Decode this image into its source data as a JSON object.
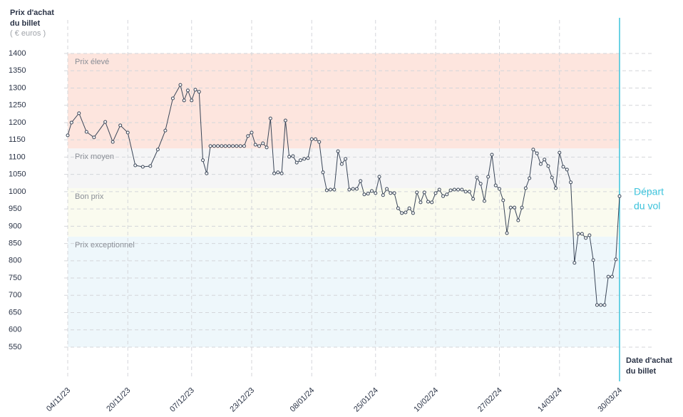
{
  "chart_data": {
    "type": "line",
    "y_label": [
      "Prix d'achat",
      "du billet"
    ],
    "y_unit": "( € euros )",
    "x_label": [
      "Date d'achat",
      "du billet"
    ],
    "ylim": [
      550,
      1400
    ],
    "yticks": [
      550,
      600,
      650,
      700,
      750,
      800,
      850,
      900,
      950,
      1000,
      1050,
      1100,
      1150,
      1200,
      1250,
      1300,
      1350,
      1400
    ],
    "xlim": [
      "04/11/23",
      "30/03/24"
    ],
    "xticks": [
      "04/11/23",
      "20/11/23",
      "07/12/23",
      "23/12/23",
      "08/01/24",
      "25/01/24",
      "10/02/24",
      "27/02/24",
      "14/03/24",
      "30/03/24"
    ],
    "grid": true,
    "zones": [
      {
        "label": "Prix élevé",
        "from": 1125,
        "to": 1400,
        "color": "#fde5de"
      },
      {
        "label": "Prix moyen",
        "from": 1010,
        "to": 1125,
        "color": "#f5f5f6"
      },
      {
        "label": "Bon prix",
        "from": 870,
        "to": 1010,
        "color": "#fafbef"
      },
      {
        "label": "Prix exceptionnel",
        "from": 550,
        "to": 870,
        "color": "#eef7fb"
      }
    ],
    "departure": {
      "label": [
        "Départ",
        "du vol"
      ],
      "date": "30/03/24",
      "color": "#3cc3dc"
    },
    "line_color": "#3a4658",
    "x": [
      "04/11/23",
      "05/11/23",
      "07/11/23",
      "09/11/23",
      "11/11/23",
      "14/11/23",
      "16/11/23",
      "18/11/23",
      "20/11/23",
      "22/11/23",
      "24/11/23",
      "26/11/23",
      "28/11/23",
      "30/11/23",
      "02/12/23",
      "04/12/23",
      "05/12/23",
      "06/12/23",
      "07/12/23",
      "08/12/23",
      "09/12/23",
      "10/12/23",
      "11/12/23",
      "12/12/23",
      "13/12/23",
      "14/12/23",
      "15/12/23",
      "16/12/23",
      "17/12/23",
      "18/12/23",
      "19/12/23",
      "20/12/23",
      "21/12/23",
      "22/12/23",
      "23/12/23",
      "24/12/23",
      "25/12/23",
      "26/12/23",
      "27/12/23",
      "28/12/23",
      "29/12/23",
      "30/12/23",
      "31/12/23",
      "01/01/24",
      "02/01/24",
      "03/01/24",
      "04/01/24",
      "05/01/24",
      "06/01/24",
      "07/01/24",
      "08/01/24",
      "09/01/24",
      "10/01/24",
      "11/01/24",
      "12/01/24",
      "13/01/24",
      "14/01/24",
      "15/01/24",
      "16/01/24",
      "17/01/24",
      "18/01/24",
      "19/01/24",
      "20/01/24",
      "21/01/24",
      "22/01/24",
      "23/01/24",
      "24/01/24",
      "25/01/24",
      "26/01/24",
      "27/01/24",
      "28/01/24",
      "29/01/24",
      "30/01/24",
      "31/01/24",
      "01/02/24",
      "02/02/24",
      "03/02/24",
      "04/02/24",
      "05/02/24",
      "06/02/24",
      "07/02/24",
      "08/02/24",
      "09/02/24",
      "10/02/24",
      "11/02/24",
      "12/02/24",
      "13/02/24",
      "14/02/24",
      "15/02/24",
      "16/02/24",
      "17/02/24",
      "18/02/24",
      "19/02/24",
      "20/02/24",
      "21/02/24",
      "22/02/24",
      "23/02/24",
      "24/02/24",
      "25/02/24",
      "26/02/24",
      "27/02/24",
      "28/02/24",
      "29/02/24",
      "01/03/24",
      "02/03/24",
      "03/03/24",
      "04/03/24",
      "05/03/24",
      "06/03/24",
      "07/03/24",
      "08/03/24",
      "09/03/24",
      "10/03/24",
      "11/03/24",
      "12/03/24",
      "13/03/24",
      "14/03/24",
      "15/03/24",
      "16/03/24",
      "17/03/24",
      "18/03/24",
      "19/03/24",
      "20/03/24",
      "21/03/24",
      "22/03/24",
      "23/03/24",
      "24/03/24",
      "25/03/24",
      "26/03/24",
      "27/03/24",
      "28/03/24",
      "29/03/24",
      "30/03/24"
    ],
    "values": [
      1163,
      1200,
      1227,
      1173,
      1157,
      1202,
      1144,
      1192,
      1171,
      1076,
      1072,
      1074,
      1122,
      1177,
      1270,
      1309,
      1264,
      1293,
      1264,
      1295,
      1289,
      1091,
      1053,
      1132,
      1132,
      1132,
      1132,
      1132,
      1132,
      1132,
      1132,
      1132,
      1132,
      1161,
      1171,
      1136,
      1132,
      1140,
      1128,
      1212,
      1053,
      1056,
      1053,
      1206,
      1101,
      1103,
      1084,
      1091,
      1095,
      1097,
      1152,
      1152,
      1144,
      1056,
      1004,
      1006,
      1006,
      1117,
      1080,
      1095,
      1006,
      1008,
      1008,
      1031,
      992,
      994,
      1002,
      996,
      1043,
      990,
      1008,
      996,
      996,
      952,
      938,
      940,
      952,
      938,
      998,
      969,
      998,
      971,
      969,
      996,
      1006,
      987,
      992,
      1004,
      1006,
      1006,
      1006,
      1000,
      1000,
      979,
      1041,
      1023,
      973,
      1043,
      1107,
      1018,
      1008,
      975,
      880,
      954,
      954,
      917,
      954,
      1010,
      1039,
      1122,
      1111,
      1080,
      1093,
      1074,
      1041,
      1010,
      1113,
      1072,
      1064,
      1027,
      794,
      878,
      878,
      866,
      874,
      802,
      672,
      672,
      672,
      754,
      754,
      804,
      987
    ]
  }
}
